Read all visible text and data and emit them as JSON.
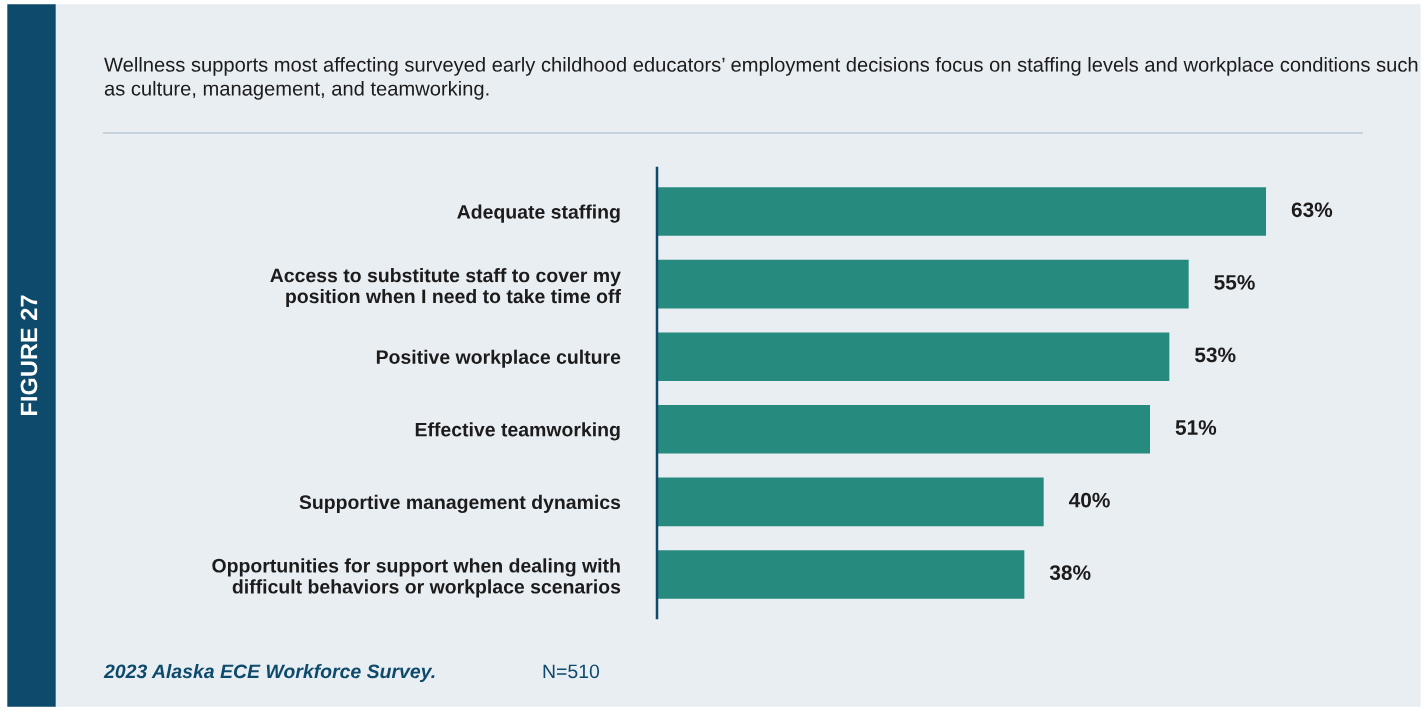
{
  "chart_data": {
    "type": "bar",
    "orientation": "horizontal",
    "title": "Wellness supports most affecting surveyed early childhood educators’ employment decisions focus on staffing levels and workplace conditions such as culture, management, and teamworking.",
    "categories": [
      "Adequate staffing",
      "Access to substitute staff to cover my\nposition when I need to take time off",
      "Positive workplace culture",
      "Effective teamworking",
      "Supportive management dynamics",
      "Opportunities for support when dealing with\ndifficult behaviors or workplace scenarios"
    ],
    "values": [
      63,
      55,
      53,
      51,
      40,
      38
    ],
    "value_labels": [
      "63%",
      "55%",
      "53%",
      "51%",
      "40%",
      "38%"
    ],
    "color": "#268a7e",
    "grid": false,
    "legend": false,
    "annotations": [
      "FIGURE 27",
      "2023 Alaska ECE Workforce Survey.",
      "N=510"
    ]
  }
}
